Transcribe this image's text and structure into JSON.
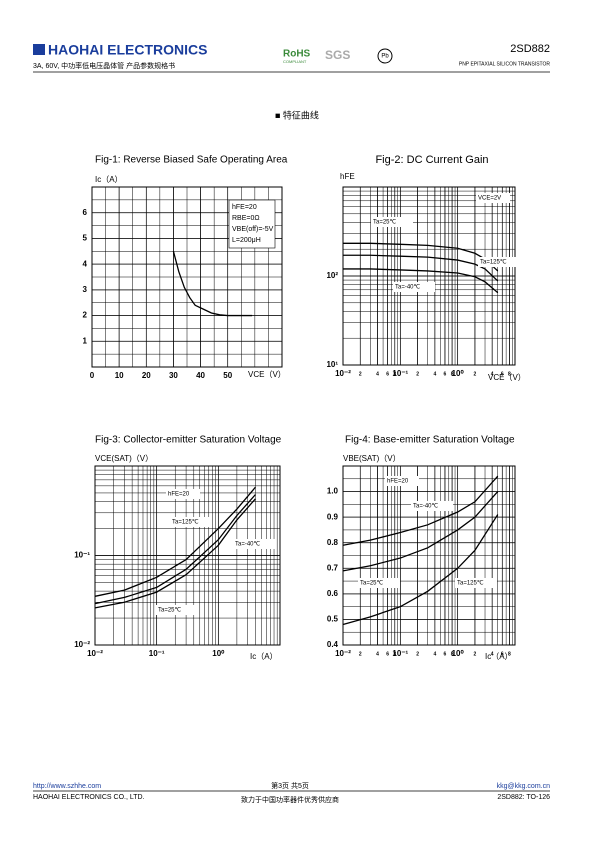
{
  "header": {
    "brand": "HAOHAI ELECTRONICS",
    "subtitle": "3A, 60V,  中功率低电压晶体管   产品参数规格书",
    "part": "2SD882",
    "description": "PNP EPITAXIAL SILICON TRANSISTOR",
    "rohs": "RoHS",
    "compliant": "COMPLIANT",
    "sgs": "SGS",
    "pb": "Pb"
  },
  "section_title": "■ 特征曲线",
  "chart_data": [
    {
      "type": "line",
      "title": "Fig-1: Reverse Biased Safe Operating Area",
      "ylabel": "Ic（A）",
      "xlabel": "VCE（V）",
      "xlim": [
        0,
        70
      ],
      "ylim": [
        0,
        7
      ],
      "xticks": [
        0,
        10,
        20,
        30,
        40,
        50
      ],
      "yticks": [
        1,
        2,
        3,
        4,
        5,
        6
      ],
      "grid": true,
      "annotations": [
        "hFE=20",
        "RBE=0Ω",
        "VBE(off)=-5V",
        "L=200μH"
      ],
      "x": [
        30,
        32,
        34,
        36,
        38,
        41,
        44,
        47,
        50,
        55,
        59
      ],
      "series": [
        {
          "color": "#000000",
          "values": [
            4.5,
            3.7,
            3.1,
            2.7,
            2.4,
            2.25,
            2.1,
            2.03,
            2,
            2,
            2
          ]
        }
      ]
    },
    {
      "type": "line",
      "title": "Fig-2: DC Current Gain",
      "ylabel": "hFE",
      "xlabel": "VCE（V）",
      "xscale": "log",
      "yscale": "log",
      "xlim": [
        0.01,
        10
      ],
      "ylim": [
        10,
        1000
      ],
      "xticks": [
        {
          "value": 0.01,
          "label": "10⁻²"
        },
        {
          "value": 0.02,
          "label": "2"
        },
        {
          "value": 0.04,
          "label": "4"
        },
        {
          "value": 0.06,
          "label": "6"
        },
        {
          "value": 0.08,
          "label": "8"
        },
        {
          "value": 0.1,
          "label": "10⁻¹"
        },
        {
          "value": 0.2,
          "label": "2"
        },
        {
          "value": 0.4,
          "label": "4"
        },
        {
          "value": 0.6,
          "label": "6"
        },
        {
          "value": 0.8,
          "label": "8"
        },
        {
          "value": 1,
          "label": "10⁰"
        },
        {
          "value": 2,
          "label": "2"
        },
        {
          "value": 4,
          "label": "4"
        },
        {
          "value": 6,
          "label": "6"
        },
        {
          "value": 8,
          "label": "8"
        }
      ],
      "yticks": [
        {
          "value": 10,
          "label": "10¹"
        },
        {
          "value": 100,
          "label": "10²"
        }
      ],
      "grid": true,
      "annotations": [
        "VCE=2V"
      ],
      "x": [
        0.01,
        0.03,
        0.1,
        0.3,
        1,
        2,
        3,
        5
      ],
      "series": [
        {
          "name": "Ta=25℃",
          "color": "#000000",
          "values": [
            171,
            171,
            167,
            163,
            151,
            136,
            120,
            88
          ]
        },
        {
          "name": "Ta=125℃",
          "color": "#000000",
          "values": [
            233,
            233,
            227,
            221,
            205,
            180,
            155,
            114
          ]
        },
        {
          "name": "Ta=-40℃",
          "color": "#000000",
          "values": [
            120,
            120,
            117,
            114,
            108,
            98,
            86,
            65
          ]
        }
      ]
    },
    {
      "type": "line",
      "title": "Fig-3: Collector-emitter Saturation Voltage",
      "ylabel": "VCE(SAT)（V）",
      "xlabel": "Ic（A）",
      "xscale": "log",
      "yscale": "log",
      "xlim": [
        0.01,
        10
      ],
      "ylim": [
        0.01,
        1
      ],
      "xticks": [
        {
          "value": 0.01,
          "label": "10⁻²"
        },
        {
          "value": 0.1,
          "label": "10⁻¹"
        },
        {
          "value": 1,
          "label": "10⁰"
        }
      ],
      "yticks": [
        {
          "value": 0.01,
          "label": "10⁻²"
        },
        {
          "value": 0.1,
          "label": "10⁻¹"
        }
      ],
      "grid": true,
      "annotations": [
        "hFE=20"
      ],
      "x": [
        0.01,
        0.03,
        0.1,
        0.3,
        1,
        2,
        4
      ],
      "series": [
        {
          "name": "Ta=125℃",
          "color": "#000000",
          "values": [
            0.035,
            0.041,
            0.057,
            0.09,
            0.2,
            0.33,
            0.58
          ]
        },
        {
          "name": "Ta=-40℃",
          "color": "#000000",
          "values": [
            0.026,
            0.03,
            0.039,
            0.061,
            0.13,
            0.25,
            0.43
          ]
        },
        {
          "name": "Ta=25℃",
          "color": "#000000",
          "values": [
            0.029,
            0.034,
            0.044,
            0.07,
            0.15,
            0.28,
            0.48
          ]
        }
      ]
    },
    {
      "type": "line",
      "title": "Fig-4: Base-emitter Saturation Voltage",
      "ylabel": "VBE(SAT)（V）",
      "xlabel": "Ic（A）",
      "xscale": "log",
      "xlim": [
        0.01,
        10
      ],
      "ylim": [
        0.4,
        1.1
      ],
      "xticks": [
        {
          "value": 0.01,
          "label": "10⁻²"
        },
        {
          "value": 0.02,
          "label": "2"
        },
        {
          "value": 0.04,
          "label": "4"
        },
        {
          "value": 0.06,
          "label": "6"
        },
        {
          "value": 0.08,
          "label": "8"
        },
        {
          "value": 0.1,
          "label": "10⁻¹"
        },
        {
          "value": 0.2,
          "label": "2"
        },
        {
          "value": 0.4,
          "label": "4"
        },
        {
          "value": 0.6,
          "label": "6"
        },
        {
          "value": 0.8,
          "label": "8"
        },
        {
          "value": 1,
          "label": "10⁰"
        },
        {
          "value": 2,
          "label": "2"
        },
        {
          "value": 4,
          "label": "4"
        },
        {
          "value": 6,
          "label": "6"
        },
        {
          "value": 8,
          "label": "8"
        }
      ],
      "yticks": [
        0.4,
        0.5,
        0.6,
        0.7,
        0.8,
        0.9,
        {
          "value": 1,
          "label": "1.0"
        }
      ],
      "grid": true,
      "annotations": [
        "hFE=20"
      ],
      "x": [
        0.01,
        0.03,
        0.1,
        0.3,
        1,
        2,
        5
      ],
      "series": [
        {
          "name": "Ta=-40℃",
          "color": "#000000",
          "values": [
            0.79,
            0.81,
            0.84,
            0.87,
            0.92,
            0.96,
            1.06
          ]
        },
        {
          "name": "Ta=25℃",
          "color": "#000000",
          "values": [
            0.69,
            0.71,
            0.74,
            0.78,
            0.85,
            0.9,
            1.0
          ]
        },
        {
          "name": "Ta=125℃",
          "color": "#000000",
          "values": [
            0.48,
            0.51,
            0.55,
            0.61,
            0.7,
            0.77,
            0.91
          ]
        }
      ]
    }
  ],
  "footer": {
    "url": "http://www.szhhe.com",
    "page": "第3页   共5页",
    "email": "kkg@kkg.com.cn",
    "company": "HAOHAI ELECTRONICS CO., LTD.",
    "slogan": "致力于中国功率器件优秀供应商",
    "package": "2SD882: TO-126"
  }
}
